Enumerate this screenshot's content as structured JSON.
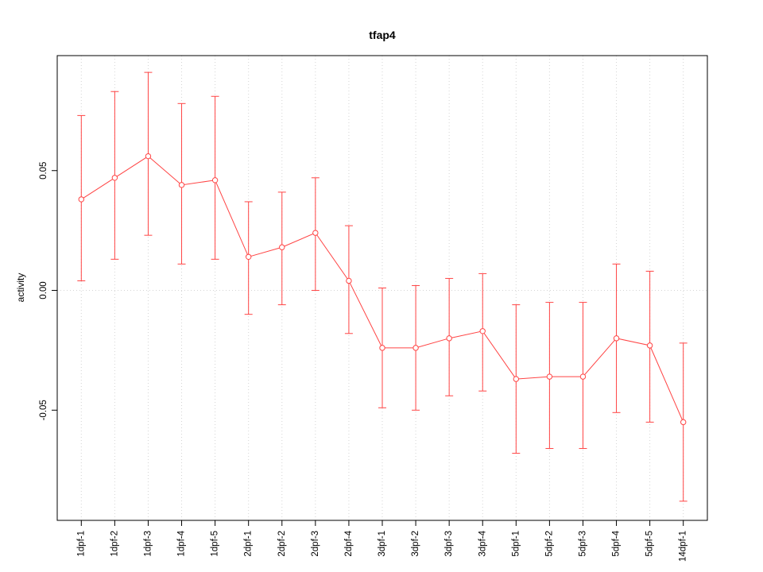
{
  "chart_data": {
    "type": "line",
    "title": "tfap4",
    "xlabel": "",
    "ylabel": "activity",
    "legend": "none",
    "grid": "dotted vertical gridline at each category; dotted horizontal line at y=0",
    "categories": [
      "1dpf-1",
      "1dpf-2",
      "1dpf-3",
      "1dpf-4",
      "1dpf-5",
      "2dpf-1",
      "2dpf-2",
      "2dpf-3",
      "2dpf-4",
      "3dpf-1",
      "3dpf-2",
      "3dpf-3",
      "3dpf-4",
      "5dpf-1",
      "5dpf-2",
      "5dpf-3",
      "5dpf-4",
      "5dpf-5",
      "14dpf-1"
    ],
    "series": [
      {
        "name": "activity",
        "values": [
          0.038,
          0.047,
          0.056,
          0.044,
          0.046,
          0.014,
          0.018,
          0.024,
          0.004,
          -0.024,
          -0.024,
          -0.02,
          -0.017,
          -0.037,
          -0.036,
          -0.036,
          -0.02,
          -0.023,
          -0.055
        ],
        "upper": [
          0.073,
          0.083,
          0.091,
          0.078,
          0.081,
          0.037,
          0.041,
          0.047,
          0.027,
          0.001,
          0.002,
          0.005,
          0.007,
          -0.006,
          -0.005,
          -0.005,
          0.011,
          0.008,
          -0.022
        ],
        "lower": [
          0.004,
          0.013,
          0.023,
          0.011,
          0.013,
          -0.01,
          -0.006,
          0.0,
          -0.018,
          -0.049,
          -0.05,
          -0.044,
          -0.042,
          -0.068,
          -0.066,
          -0.066,
          -0.051,
          -0.055,
          -0.088
        ]
      }
    ],
    "yticks": [
      {
        "value": -0.05,
        "label": "-0.05"
      },
      {
        "value": 0.0,
        "label": "0.00"
      },
      {
        "value": 0.05,
        "label": "0.05"
      }
    ],
    "ylim": [
      -0.096,
      0.098
    ],
    "colors": {
      "series": "#ff4444",
      "grid": "#d4d4d4",
      "axis": "#000000",
      "background": "#ffffff"
    }
  }
}
